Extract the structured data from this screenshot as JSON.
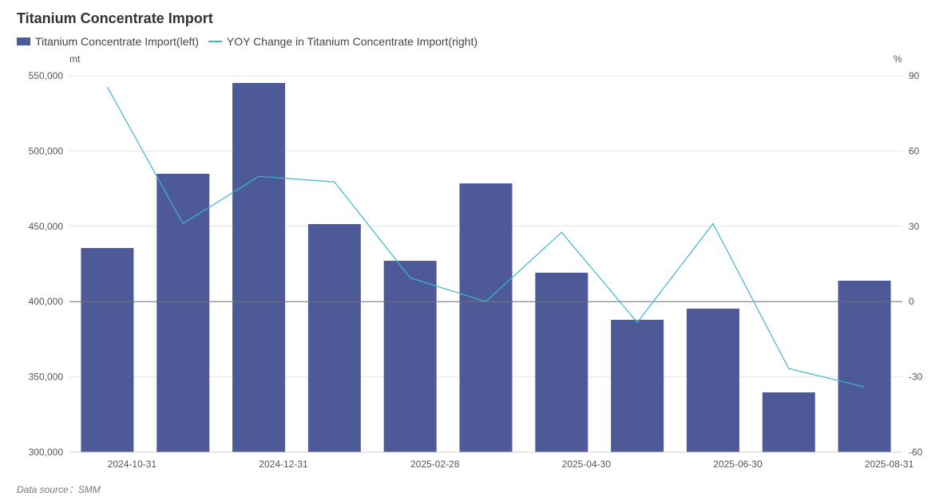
{
  "chart_data": {
    "type": "bar",
    "title": "Titanium Concentrate Import",
    "categories": [
      "2024-10-31",
      "2024-11-30",
      "2024-12-31",
      "2025-01-31",
      "2025-02-28",
      "2025-03-31",
      "2025-04-30",
      "2025-05-31",
      "2025-06-30",
      "2025-07-31",
      "2025-08-31"
    ],
    "x_tick_labels": [
      "2024-10-31",
      "",
      "2024-12-31",
      "",
      "2025-02-28",
      "",
      "2025-04-30",
      "",
      "2025-06-30",
      "",
      "2025-08-31"
    ],
    "series": [
      {
        "name": "Titanium Concentrate Import(left)",
        "type": "bar",
        "axis": "left",
        "color": "#4e5a98",
        "values": [
          435600,
          484900,
          545200,
          451500,
          427100,
          478500,
          419200,
          387900,
          395300,
          339700,
          413900
        ]
      },
      {
        "name": "YOY Change in Titanium Concentrate Import(right)",
        "type": "line",
        "axis": "right",
        "color": "#3fb6d0",
        "values": [
          85.5,
          31.1,
          49.9,
          47.7,
          9.5,
          0.0,
          27.6,
          -8.3,
          31.1,
          -26.7,
          -34.0
        ]
      }
    ],
    "left_axis": {
      "unit": "mt",
      "ylim": [
        300000,
        550000
      ],
      "ticks": [
        "300,000",
        "350,000",
        "400,000",
        "450,000",
        "500,000",
        "550,000"
      ]
    },
    "right_axis": {
      "unit": "%",
      "ylim": [
        -60,
        90
      ],
      "ticks": [
        "-60",
        "-30",
        "0",
        "30",
        "60",
        "90"
      ]
    },
    "grid": true,
    "legend_position": "top-left"
  },
  "source": "Data source：SMM"
}
